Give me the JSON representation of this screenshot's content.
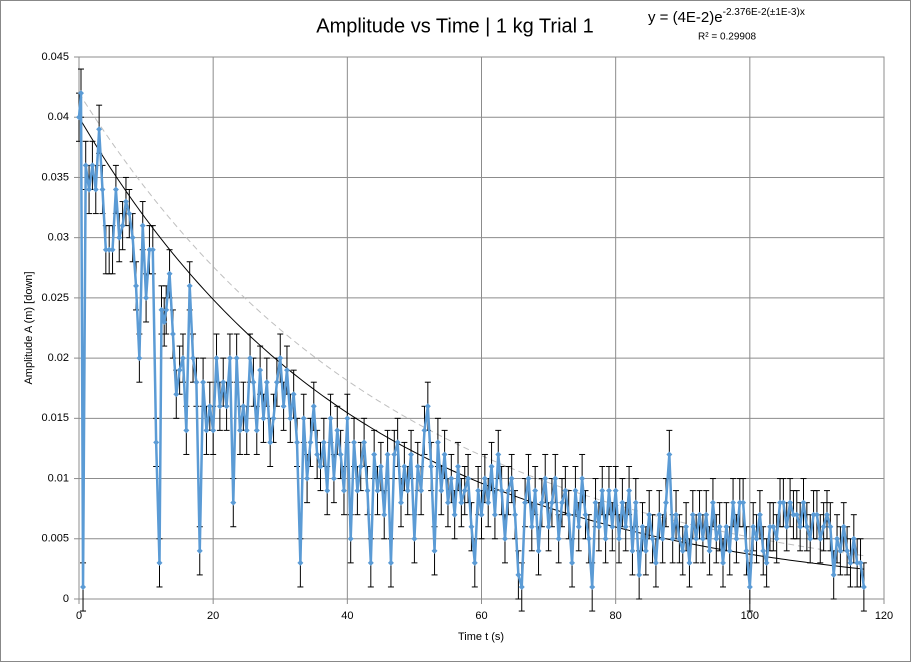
{
  "chart_data": {
    "type": "line",
    "title": "Amplitude vs Time | 1 kg Trial 1",
    "equation": {
      "base": "y = (4E-2)e",
      "exponent": "-2.376E-2(±1E-3)x"
    },
    "r_squared": "R² = 0.29908",
    "x_label": "Time t (s)",
    "y_label": "Amplitude A (m) [down]",
    "xlim": [
      0,
      120
    ],
    "xticks": [
      0,
      20,
      40,
      60,
      80,
      100,
      120
    ],
    "ylim": [
      0,
      0.045
    ],
    "yticks": [
      0,
      0.005,
      0.01,
      0.015,
      0.02,
      0.025,
      0.03,
      0.035,
      0.04,
      0.045
    ],
    "grid": true,
    "series": [
      {
        "color": "#5b9bd5",
        "error": 0.002,
        "x": [
          0,
          0.3,
          0.6,
          1,
          1.5,
          2,
          2.5,
          3,
          3.5,
          4,
          4.5,
          5,
          5.5,
          6,
          6.5,
          7,
          7.5,
          8,
          8.5,
          9,
          9.5,
          10,
          10.5,
          11,
          11.5,
          12,
          12.3,
          12.7,
          13,
          13.5,
          14,
          14.5,
          15,
          15.5,
          16,
          16.5,
          17,
          17.5,
          18,
          18.5,
          19,
          19.5,
          20,
          20.5,
          21,
          21.5,
          22,
          22.5,
          23,
          23.5,
          24,
          24.5,
          25,
          25.5,
          26,
          26.5,
          27,
          27.5,
          28,
          28.5,
          29,
          29.5,
          30,
          30.5,
          31,
          31.5,
          32,
          32.5,
          33,
          33.5,
          34,
          34.5,
          35,
          35.5,
          36,
          36.5,
          37,
          37.5,
          38,
          38.5,
          39,
          39.5,
          40,
          40.5,
          41,
          41.5,
          42,
          42.5,
          43,
          43.5,
          44,
          44.5,
          45,
          45.5,
          46,
          46.5,
          47,
          47.5,
          48,
          48.5,
          49,
          49.5,
          50,
          50.5,
          51,
          51.5,
          52,
          52.5,
          53,
          53.5,
          54,
          54.5,
          55,
          55.5,
          56,
          56.5,
          57,
          57.5,
          58,
          58.5,
          59,
          59.5,
          60,
          60.5,
          61,
          61.5,
          62,
          62.5,
          63,
          63.5,
          64,
          64.5,
          65,
          65.5,
          66,
          66.5,
          67,
          67.5,
          68,
          68.5,
          69,
          69.5,
          70,
          70.5,
          71,
          71.5,
          72,
          72.5,
          73,
          73.5,
          74,
          74.5,
          75,
          75.5,
          76,
          76.5,
          77,
          77.5,
          78,
          78.5,
          79,
          79.5,
          80,
          80.5,
          81,
          81.5,
          82,
          82.5,
          83,
          83.5,
          84,
          84.5,
          85,
          85.5,
          86,
          86.5,
          87,
          87.5,
          88,
          88.5,
          89,
          89.5,
          90,
          90.5,
          91,
          91.5,
          92,
          92.5,
          93,
          93.5,
          94,
          94.5,
          95,
          95.5,
          96,
          96.5,
          97,
          97.5,
          98,
          98.5,
          99,
          99.5,
          100,
          100.5,
          101,
          101.5,
          102,
          102.5,
          103,
          103.5,
          104,
          104.5,
          105,
          105.5,
          106,
          106.5,
          107,
          107.5,
          108,
          108.5,
          109,
          109.5,
          110,
          110.5,
          111,
          111.5,
          112,
          112.5,
          113,
          113.5,
          114,
          114.5,
          115,
          115.5,
          116,
          116.5,
          117
        ],
        "values": [
          0.04,
          0.042,
          0.001,
          0.036,
          0.034,
          0.036,
          0.034,
          0.039,
          0.034,
          0.029,
          0.029,
          0.029,
          0.034,
          0.03,
          0.031,
          0.033,
          0.032,
          0.03,
          0.026,
          0.02,
          0.031,
          0.025,
          0.029,
          0.029,
          0.013,
          0.003,
          0.024,
          0.023,
          0.024,
          0.027,
          0.022,
          0.017,
          0.019,
          0.02,
          0.014,
          0.026,
          0.02,
          0.018,
          0.004,
          0.018,
          0.014,
          0.016,
          0.014,
          0.02,
          0.016,
          0.018,
          0.016,
          0.02,
          0.008,
          0.02,
          0.014,
          0.016,
          0.014,
          0.02,
          0.018,
          0.014,
          0.019,
          0.015,
          0.018,
          0.013,
          0.015,
          0.018,
          0.02,
          0.016,
          0.019,
          0.015,
          0.017,
          0.013,
          0.003,
          0.015,
          0.01,
          0.013,
          0.016,
          0.012,
          0.011,
          0.013,
          0.009,
          0.015,
          0.01,
          0.014,
          0.012,
          0.009,
          0.015,
          0.005,
          0.013,
          0.009,
          0.011,
          0.013,
          0.009,
          0.003,
          0.012,
          0.009,
          0.011,
          0.007,
          0.012,
          0.003,
          0.012,
          0.013,
          0.008,
          0.011,
          0.009,
          0.012,
          0.005,
          0.011,
          0.009,
          0.014,
          0.016,
          0.011,
          0.004,
          0.013,
          0.009,
          0.012,
          0.008,
          0.01,
          0.007,
          0.011,
          0.008,
          0.009,
          0.01,
          0.006,
          0.003,
          0.009,
          0.007,
          0.01,
          0.008,
          0.011,
          0.007,
          0.012,
          0.009,
          0.005,
          0.009,
          0.01,
          0.007,
          0.002,
          0.001,
          0.008,
          0.01,
          0.006,
          0.009,
          0.004,
          0.008,
          0.01,
          0.006,
          0.008,
          0.01,
          0.005,
          0.008,
          0.009,
          0.007,
          0.003,
          0.009,
          0.006,
          0.01,
          0.007,
          0.005,
          0.001,
          0.008,
          0.006,
          0.009,
          0.005,
          0.009,
          0.006,
          0.009,
          0.005,
          0.008,
          0.006,
          0.009,
          0.004,
          0.008,
          0.002,
          0.006,
          0.004,
          0.007,
          0.005,
          0.003,
          0.007,
          0.005,
          0.008,
          0.012,
          0.005,
          0.007,
          0.005,
          0.004,
          0.006,
          0.003,
          0.007,
          0.005,
          0.007,
          0.005,
          0.007,
          0.004,
          0.008,
          0.005,
          0.006,
          0.003,
          0.006,
          0.004,
          0.008,
          0.005,
          0.008,
          0.008,
          0.004,
          0.001,
          0.006,
          0.005,
          0.007,
          0.004,
          0.003,
          0.006,
          0.006,
          0.005,
          0.008,
          0.008,
          0.006,
          0.008,
          0.007,
          0.007,
          0.006,
          0.008,
          0.006,
          0.005,
          0.007,
          0.007,
          0.005,
          0.006,
          0.007,
          0.006,
          0.002,
          0.005,
          0.004,
          0.006,
          0.004,
          0.003,
          0.005,
          0.003,
          0.003,
          0.001
        ]
      }
    ],
    "trendlines": [
      {
        "a": 0.04,
        "b": -0.02376,
        "color": "#000000",
        "dashed": false
      },
      {
        "a": 0.042,
        "b": -0.021,
        "color": "#bfbfbf",
        "dashed": true
      }
    ]
  }
}
